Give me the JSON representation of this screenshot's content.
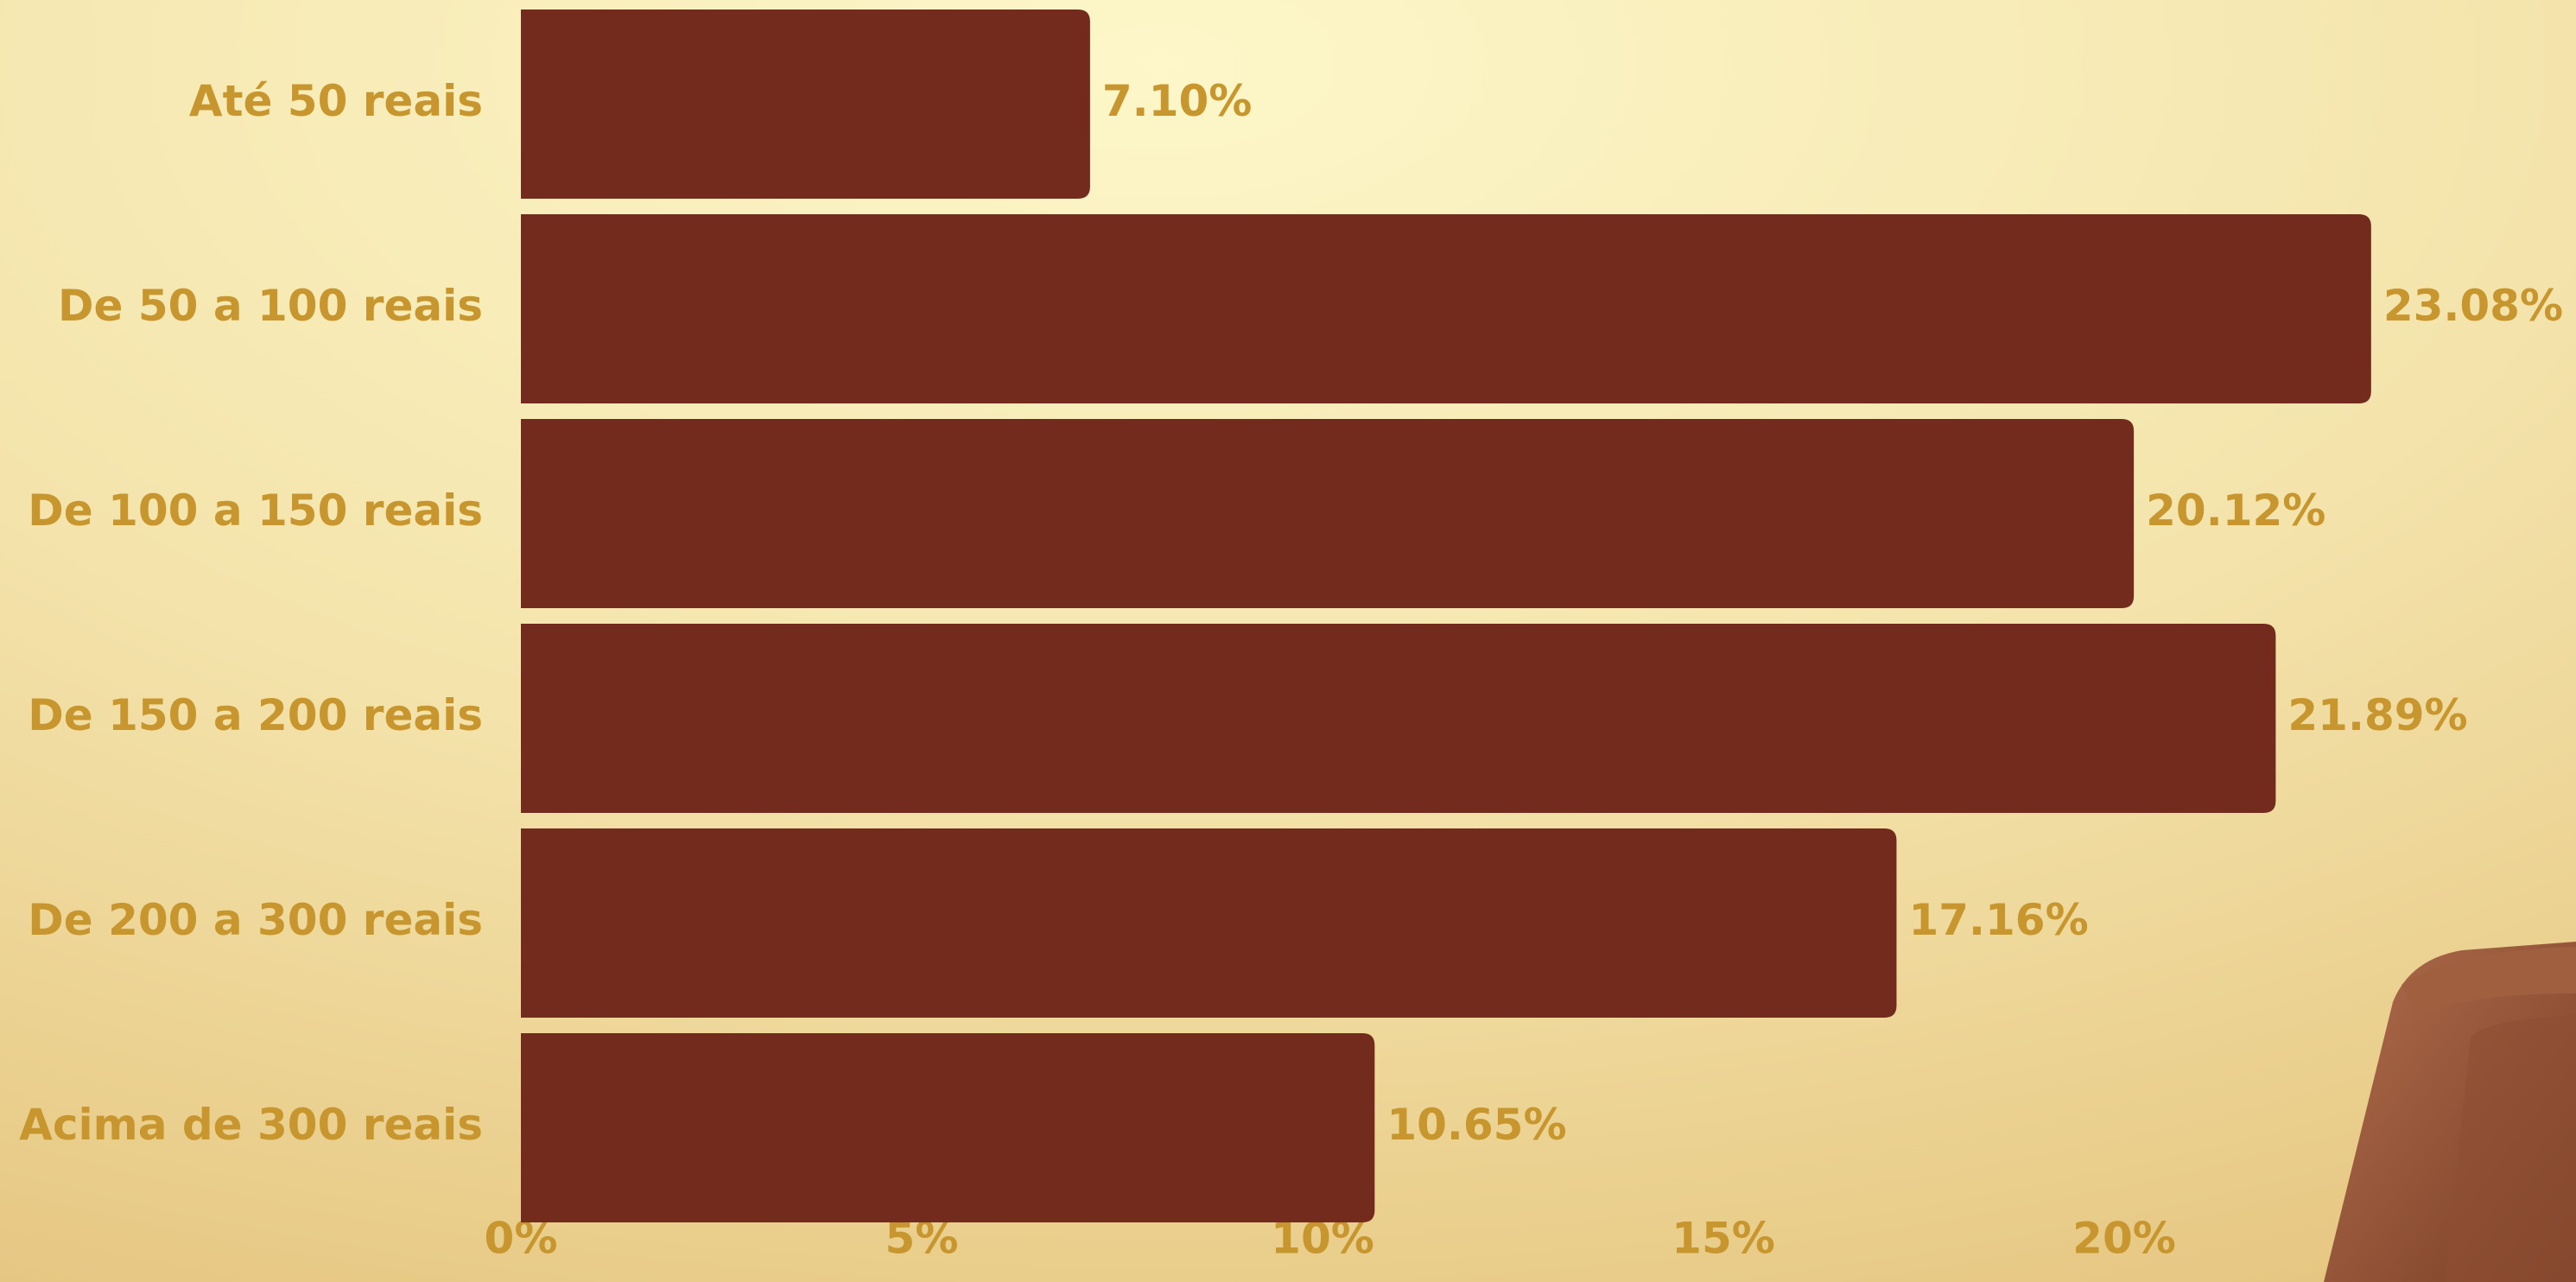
{
  "chart_data": {
    "type": "bar",
    "orientation": "horizontal",
    "categories": [
      "Até 50 reais",
      "De 50 a 100 reais",
      "De 100 a 150 reais",
      "De 150 a 200 reais",
      "De 200 a 300 reais",
      "Acima de 300 reais"
    ],
    "values": [
      7.1,
      23.08,
      20.12,
      21.89,
      17.16,
      10.65
    ],
    "value_labels": [
      "7.10%",
      "23.08%",
      "20.12%",
      "21.89%",
      "17.16%",
      "10.65%"
    ],
    "color": "#722b1d",
    "text_color": "#c8962e",
    "xlim": [
      0,
      25
    ],
    "xticks": [
      {
        "value": 0,
        "label": "0%"
      },
      {
        "value": 5,
        "label": "5%"
      },
      {
        "value": 10,
        "label": "10%"
      },
      {
        "value": 15,
        "label": "15%"
      },
      {
        "value": 20,
        "label": "20%"
      }
    ],
    "grid": false
  }
}
